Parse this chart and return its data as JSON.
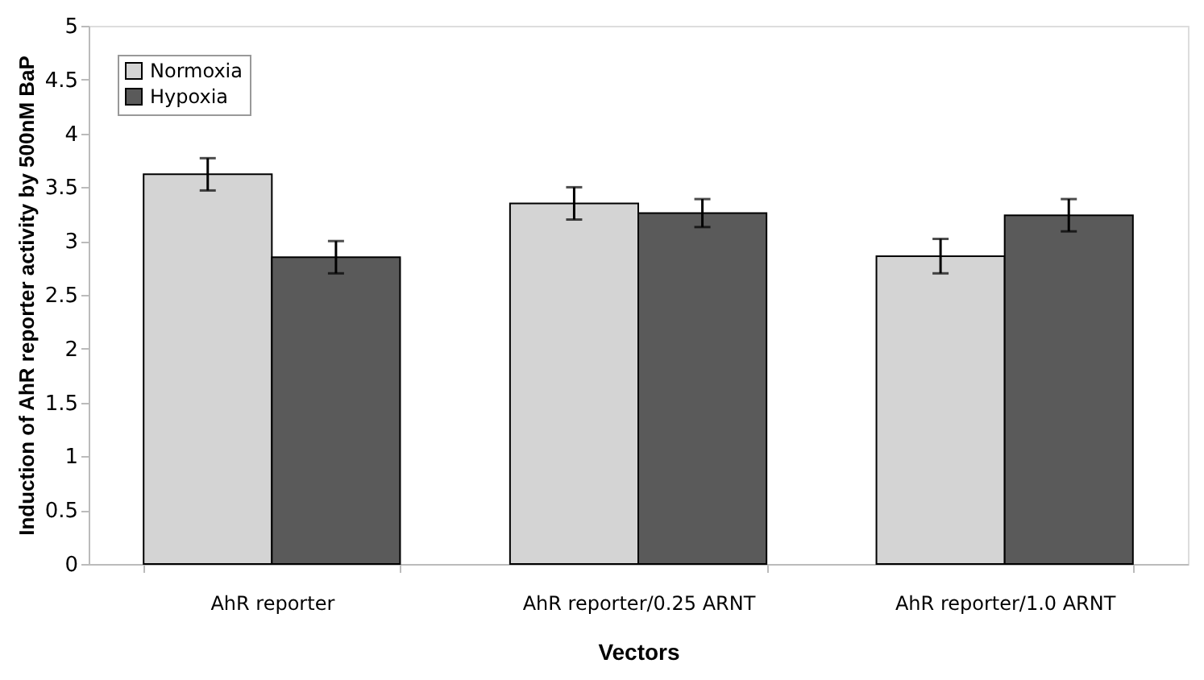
{
  "chart_data": {
    "type": "bar",
    "xlabel": "Vectors",
    "ylabel": "Induction of AhR reporter activity by 500nM BaP",
    "categories": [
      "AhR reporter",
      "AhR reporter/0.25 ARNT",
      "AhR reporter/1.0 ARNT"
    ],
    "series": [
      {
        "name": "Normoxia",
        "color": "#d4d4d4",
        "values": [
          3.62,
          3.35,
          2.86
        ],
        "errors": [
          0.15,
          0.15,
          0.16
        ]
      },
      {
        "name": "Hypoxia",
        "color": "#5a5a5a",
        "values": [
          2.85,
          3.26,
          3.24
        ],
        "errors": [
          0.15,
          0.13,
          0.15
        ]
      }
    ],
    "ylim": [
      0,
      5
    ],
    "yticks": [
      0,
      0.5,
      1,
      1.5,
      2,
      2.5,
      3,
      3.5,
      4,
      4.5,
      5
    ],
    "grid": false,
    "legend": "top left"
  }
}
